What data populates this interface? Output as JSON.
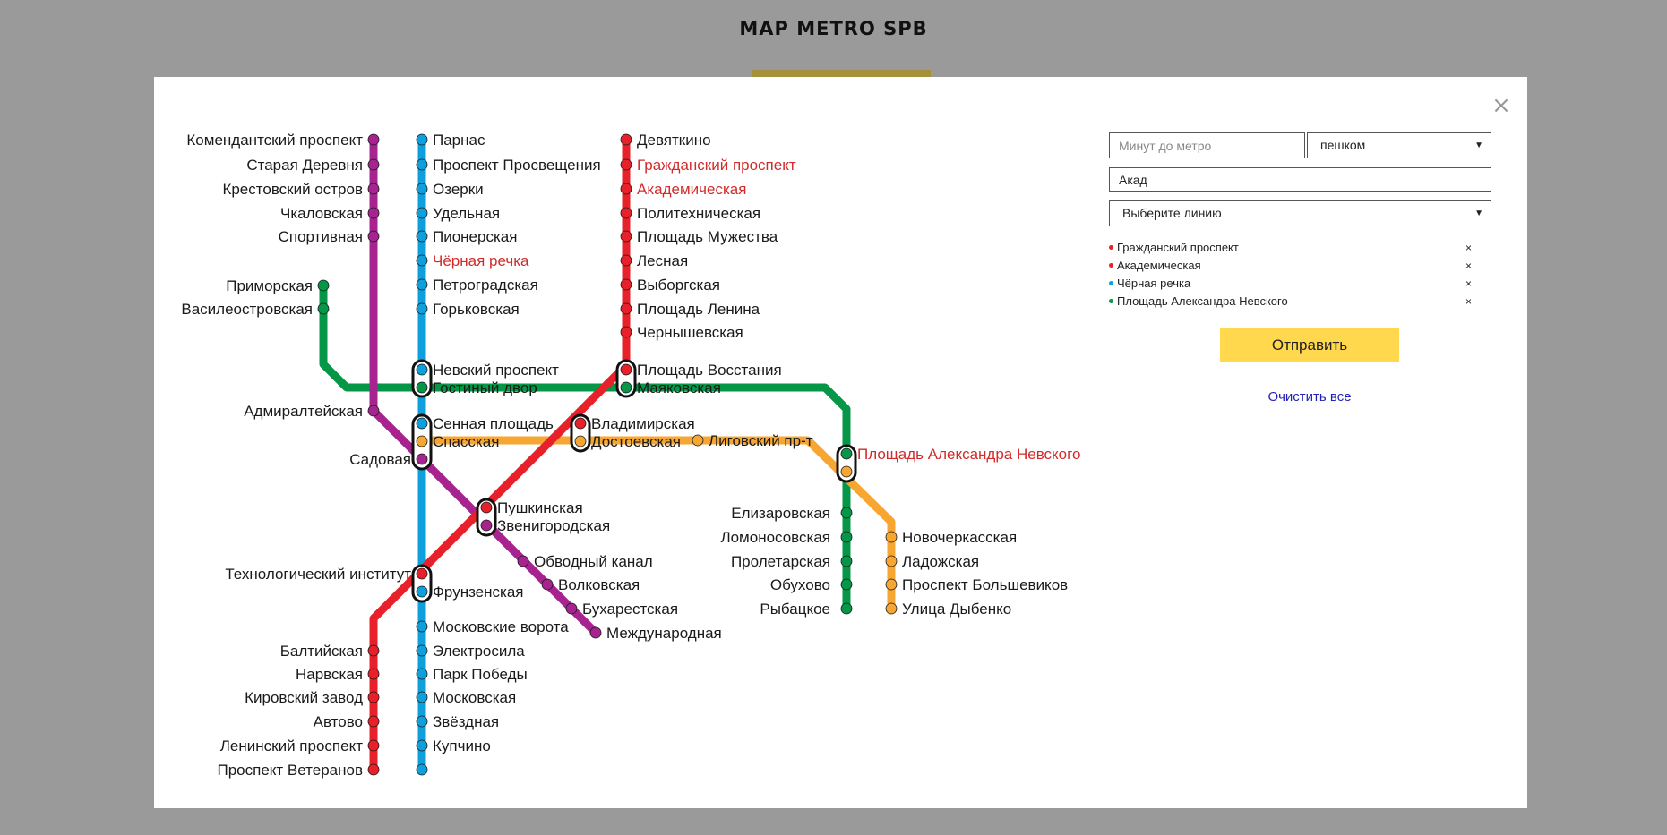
{
  "header": {
    "title": "MAP METRO SPB"
  },
  "form": {
    "minutes_placeholder": "Минут до метро",
    "mode_value": "пешком",
    "search_value": "Акад",
    "line_placeholder": "Выберите линию"
  },
  "selected": [
    {
      "name": "Гражданский проспект",
      "color": "#e8202a"
    },
    {
      "name": "Академическая",
      "color": "#e8202a"
    },
    {
      "name": "Чёрная речка",
      "color": "#0ea0dc"
    },
    {
      "name": "Площадь Александра Невского",
      "color": "#059647"
    }
  ],
  "buttons": {
    "submit": "Отправить",
    "clear": "Очистить все"
  },
  "colors": {
    "red": "#e8202a",
    "blue": "#0ea0dc",
    "green": "#059647",
    "orange": "#f7a631",
    "purple": "#a7238f",
    "selected_text": "#d32b2b",
    "submit_bg": "#ffd84d"
  },
  "stations": {
    "komendantsky": "Комендантский проспект",
    "staraya_derevnya": "Старая Деревня",
    "krestovsky": "Крестовский остров",
    "chkalovskaya": "Чкаловская",
    "sportivnaya": "Спортивная",
    "admiralteyskaya": "Адмиралтейская",
    "sadovaya": "Садовая",
    "zvenigorodskaya": "Звенигородская",
    "obvodny": "Обводный канал",
    "volkovskaya": "Волковская",
    "bukharestskaya": "Бухарестская",
    "mezhdunarodnaya": "Международная",
    "parnas": "Парнас",
    "prosveshcheniya": "Проспект Просвещения",
    "ozerki": "Озерки",
    "udelnaya": "Удельная",
    "pionerskaya": "Пионерская",
    "chernaya_rechka": "Чёрная речка",
    "petrogradskaya": "Петроградская",
    "gorkovskaya": "Горьковская",
    "nevsky": "Невский проспект",
    "sennaya": "Сенная площадь",
    "tekhnologichesky": "Технологический институт",
    "frunzenskaya": "Фрунзенская",
    "moskovskie_vorota": "Московские ворота",
    "elektrosila": "Электросила",
    "park_pobedy": "Парк Победы",
    "moskovskaya": "Московская",
    "zvezdnaya": "Звёздная",
    "kupchino": "Купчино",
    "devyatkino": "Девяткино",
    "grazhdansky": "Гражданский проспект",
    "akademicheskaya": "Академическая",
    "politekhnicheskaya": "Политехническая",
    "muzhestva": "Площадь Мужества",
    "lesnaya": "Лесная",
    "vyborgskaya": "Выборгская",
    "lenina": "Площадь Ленина",
    "chernyshevskaya": "Чернышевская",
    "vosstaniya": "Площадь Восстания",
    "vladimirskaya": "Владимирская",
    "pushkinskaya": "Пушкинская",
    "baltiyskaya": "Балтийская",
    "narvskaya": "Нарвская",
    "kirovsky": "Кировский завод",
    "avtovo": "Автово",
    "leninsky": "Ленинский проспект",
    "veteranov": "Проспект Ветеранов",
    "primorskaya": "Приморская",
    "vasileostrovskaya": "Василеостровская",
    "gostiny": "Гостиный двор",
    "mayakovskaya": "Маяковская",
    "nevskogo": "Площадь Александра Невского",
    "elizarovskaya": "Елизаровская",
    "lomonosovskaya": "Ломоносовская",
    "proletarskaya": "Пролетарская",
    "obukhovo": "Обухово",
    "rybatskoe": "Рыбацкое",
    "spasskaya": "Спасская",
    "dostoevskaya": "Достоевская",
    "ligovsky": "Лиговский пр-т",
    "novocherkasskaya": "Новочеркасская",
    "ladozhskaya": "Ладожская",
    "bolshevikov": "Проспект Большевиков",
    "dybenko": "Улица Дыбенко"
  }
}
